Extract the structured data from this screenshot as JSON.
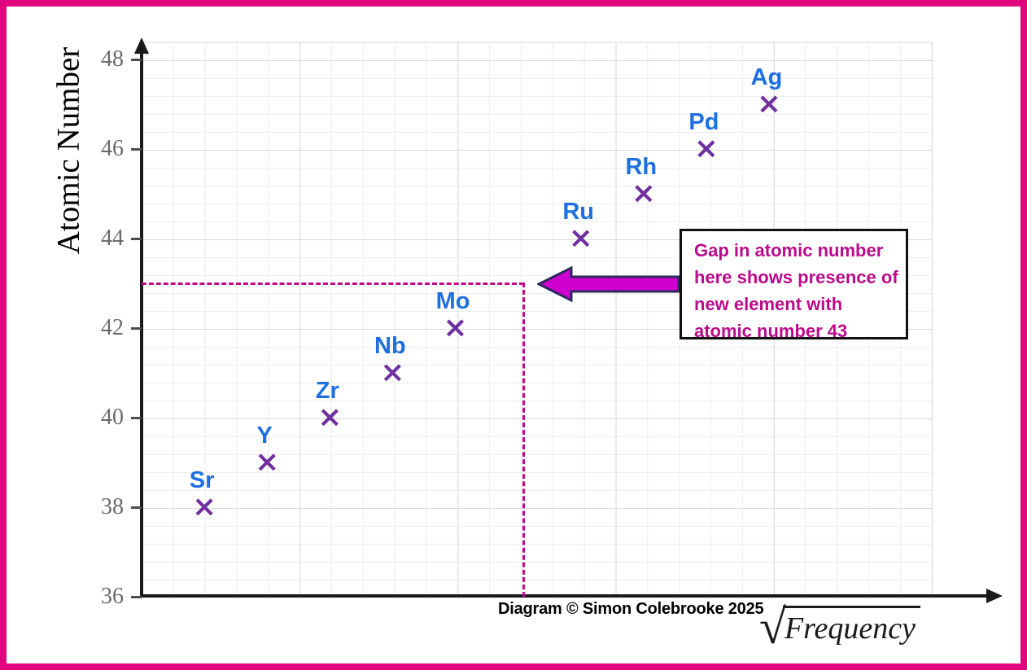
{
  "colors": {
    "frame_pink": "#E2067E",
    "axis_black": "#1A1A1A",
    "tick_gray": "#6B6B6B",
    "grid_minor": "#EDEDED",
    "grid_major": "#D8D8D8",
    "marker_purple": "#7030A0",
    "element_blue": "#1E6FE0",
    "dashed_magenta": "#C00A8C",
    "annotation_magenta": "#BB0A8C",
    "arrow_fill": "#CF00CF",
    "arrow_outline": "#2B2B5E",
    "box_border": "#111111"
  },
  "axes": {
    "y_label": "Atomic Number",
    "x_label_radical": "√",
    "x_label": "Frequency"
  },
  "annotation": {
    "lines": [
      "Gap in atomic number",
      "here shows presence of",
      "new element with",
      "atomic number 43"
    ]
  },
  "footer": {
    "copyright": "Diagram © Simon Colebrooke 2025"
  },
  "chart_data": {
    "type": "scatter",
    "title": "",
    "xlabel": "√Frequency",
    "ylabel": "Atomic Number",
    "ylim": [
      36,
      48.4
    ],
    "y_ticks": [
      36,
      38,
      40,
      42,
      44,
      46,
      48
    ],
    "x_ticks": [],
    "grid": "major and minor gridlines on",
    "legend": "none",
    "marker_glyph": "×",
    "points": [
      {
        "label": "Sr",
        "atomic_number": 38,
        "x_slot": 1
      },
      {
        "label": "Y",
        "atomic_number": 39,
        "x_slot": 2
      },
      {
        "label": "Zr",
        "atomic_number": 40,
        "x_slot": 3
      },
      {
        "label": "Nb",
        "atomic_number": 41,
        "x_slot": 4
      },
      {
        "label": "Mo",
        "atomic_number": 42,
        "x_slot": 5
      },
      {
        "label": "Ru",
        "atomic_number": 44,
        "x_slot": 7
      },
      {
        "label": "Rh",
        "atomic_number": 45,
        "x_slot": 8
      },
      {
        "label": "Pd",
        "atomic_number": 46,
        "x_slot": 9
      },
      {
        "label": "Ag",
        "atomic_number": 47,
        "x_slot": 10
      }
    ],
    "gap": {
      "x_slot": 6,
      "atomic_number": 43,
      "marked_with": "magenta dashed lines from axis to gap position plus arrow and text box"
    }
  }
}
